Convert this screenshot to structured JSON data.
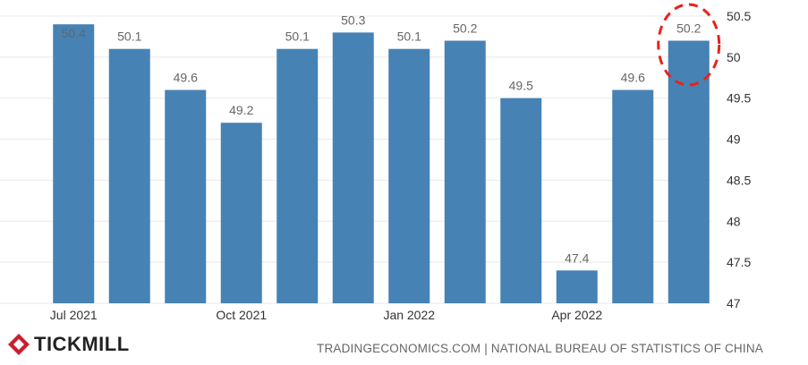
{
  "chart_data": {
    "type": "bar",
    "categories": [
      "Jul 2021",
      "Aug 2021",
      "Sep 2021",
      "Oct 2021",
      "Nov 2021",
      "Dec 2021",
      "Jan 2022",
      "Feb 2022",
      "Mar 2022",
      "Apr 2022",
      "May 2022",
      "Jun 2022"
    ],
    "values": [
      50.4,
      50.1,
      49.6,
      49.2,
      50.1,
      50.3,
      50.1,
      50.2,
      49.5,
      47.4,
      49.6,
      50.2
    ],
    "x_tick_labels": [
      "Jul 2021",
      "Oct 2021",
      "Jan 2022",
      "Apr 2022"
    ],
    "y_ticks": [
      "50.5",
      "50",
      "49.5",
      "49",
      "48.5",
      "48",
      "47.5",
      "47"
    ],
    "ylim": [
      47,
      50.5
    ],
    "bar_color": "#4682b4",
    "highlight_index": 11,
    "highlight_color": "#e8231b",
    "grid": true,
    "y_axis_side": "right"
  },
  "footer": {
    "brand": "TICKMILL",
    "brand_color": "#c8202f",
    "source": "TRADINGECONOMICS.COM | NATIONAL BUREAU OF STATISTICS OF CHINA"
  }
}
